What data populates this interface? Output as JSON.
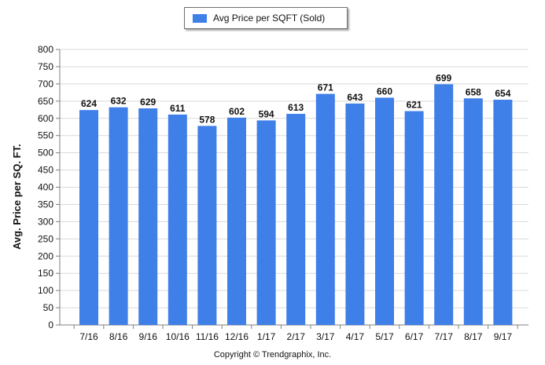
{
  "legend": {
    "label": "Avg Price per SQFT (Sold)"
  },
  "footer": {
    "copyright": "Copyright © Trendgraphix, Inc."
  },
  "colors": {
    "bar": "#3f7fe8",
    "grid": "#d9d9d9",
    "axis": "#7f7f7f"
  },
  "chart_data": {
    "type": "bar",
    "title": "",
    "xlabel": "",
    "ylabel": "Avg. Price per SQ. FT.",
    "ylim": [
      0,
      800
    ],
    "yticks": [
      0,
      50,
      100,
      150,
      200,
      250,
      300,
      350,
      400,
      450,
      500,
      550,
      600,
      650,
      700,
      750,
      800
    ],
    "grid": true,
    "legend_position": "top-center",
    "categories": [
      "7/16",
      "8/16",
      "9/16",
      "10/16",
      "11/16",
      "12/16",
      "1/17",
      "2/17",
      "3/17",
      "4/17",
      "5/17",
      "6/17",
      "7/17",
      "8/17",
      "9/17"
    ],
    "series": [
      {
        "name": "Avg Price per SQFT (Sold)",
        "values": [
          624,
          632,
          629,
          611,
          578,
          602,
          594,
          613,
          671,
          643,
          660,
          621,
          699,
          658,
          654
        ]
      }
    ]
  }
}
